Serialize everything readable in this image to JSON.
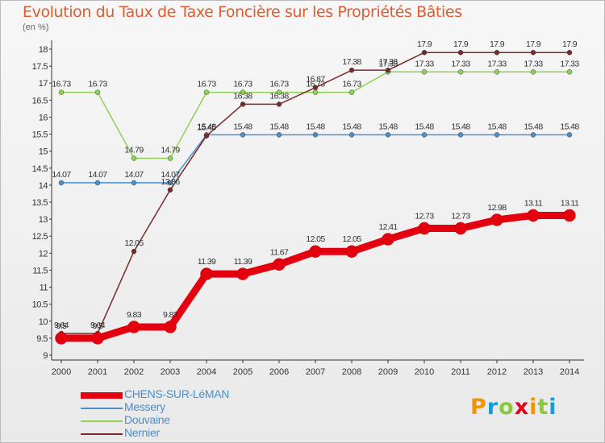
{
  "title": "Evolution du Taux de Taxe Foncière sur les Propriétés Bâties",
  "unit": "(en %)",
  "logo": [
    "P",
    "r",
    "o",
    "x",
    "i",
    "t",
    "i"
  ],
  "logo_colors": [
    "#f29400",
    "#1a9ad6",
    "#8cc63e",
    "#e2001a",
    "#f29400",
    "#8cc63e",
    "#1a9ad6"
  ],
  "chart_data": {
    "type": "line",
    "x": [
      "2000",
      "2001",
      "2002",
      "2003",
      "2004",
      "2005",
      "2006",
      "2007",
      "2008",
      "2009",
      "2010",
      "2011",
      "2012",
      "2013",
      "2014"
    ],
    "ylim": [
      9,
      18
    ],
    "yticks": [
      "9",
      "9.5",
      "10",
      "10.5",
      "11",
      "11.5",
      "12",
      "12.5",
      "13",
      "13.5",
      "14",
      "14.5",
      "15",
      "15.5",
      "16",
      "16.5",
      "17",
      "17.5",
      "18"
    ],
    "grid": false,
    "legend_position": "bottom-left",
    "series": [
      {
        "name": "CHENS-SUR-LéMAN",
        "color": "#e3000f",
        "values": [
          9.5,
          9.5,
          9.83,
          9.83,
          11.39,
          11.39,
          11.67,
          12.05,
          12.05,
          12.41,
          12.73,
          12.73,
          12.98,
          13.11,
          13.11
        ],
        "labels": [
          "9.5",
          "9.5",
          "9.83",
          "9.83",
          "11.39",
          "11.39",
          "11.67",
          "12.05",
          "12.05",
          "12.41",
          "12.73",
          "12.73",
          "12.98",
          "13.11",
          "13.11"
        ]
      },
      {
        "name": "Messery",
        "color": "#4a8fc9",
        "values": [
          14.07,
          14.07,
          14.07,
          14.07,
          15.48,
          15.48,
          15.48,
          15.48,
          15.48,
          15.48,
          15.48,
          15.48,
          15.48,
          15.48,
          15.48
        ],
        "labels": [
          "14.07",
          "14.07",
          "14.07",
          "14.07",
          "15.48",
          "15.48",
          "15.48",
          "15.48",
          "15.48",
          "15.48",
          "15.48",
          "15.48",
          "15.48",
          "15.48",
          "15.48"
        ]
      },
      {
        "name": "Douvaine",
        "color": "#8cd253",
        "values": [
          16.73,
          16.73,
          14.79,
          14.79,
          16.73,
          16.73,
          16.73,
          16.73,
          16.73,
          17.33,
          17.33,
          17.33,
          17.33,
          17.33,
          17.33
        ],
        "labels": [
          "16.73",
          "16.73",
          "14.79",
          "14.79",
          "16.73",
          "16.73",
          "16.73",
          "16.73",
          "16.73",
          "17.33",
          "17.33",
          "17.33",
          "17.33",
          "17.33",
          "17.33"
        ]
      },
      {
        "name": "Nernier",
        "color": "#7a2a2a",
        "values": [
          9.64,
          9.64,
          12.05,
          13.86,
          15.45,
          16.38,
          16.38,
          16.87,
          17.38,
          17.38,
          17.9,
          17.9,
          17.9,
          17.9,
          17.9
        ],
        "labels": [
          "9.64",
          "9.64",
          "12.05",
          "13.86",
          "15.45",
          "16.38",
          "16.38",
          "16.87",
          "17.38",
          "17.38",
          "17.9",
          "17.9",
          "17.9",
          "17.9",
          "17.9"
        ]
      }
    ]
  }
}
